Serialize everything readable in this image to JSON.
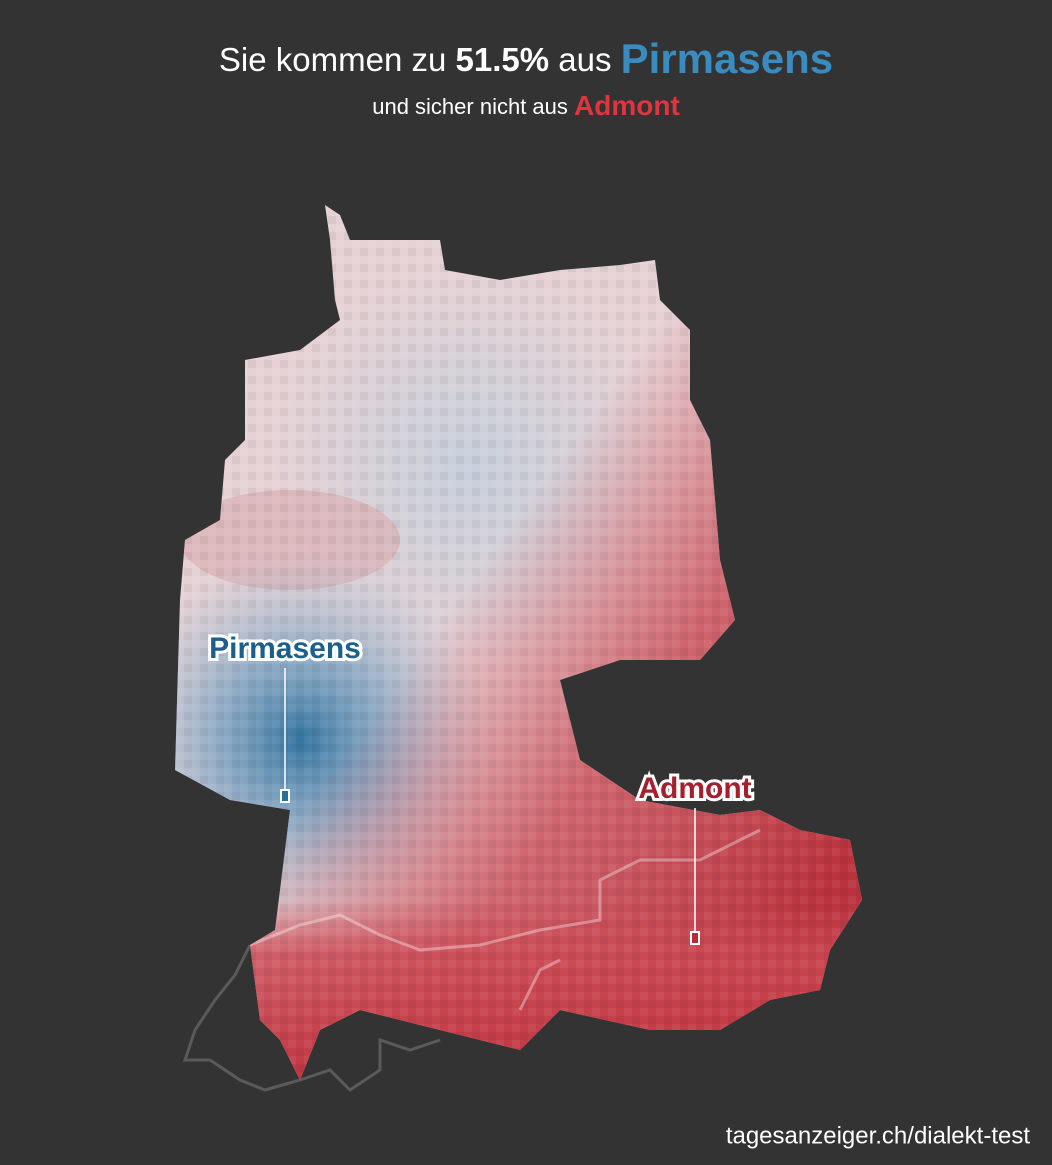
{
  "header": {
    "title_lead": "Sie kommen zu",
    "title_share": "51.5%",
    "title_mid": "aus",
    "title_place": "Pirmasens",
    "subtitle_lead": "und sicher nicht aus",
    "subtitle_place": "Admont"
  },
  "markers": [
    {
      "label": "Pirmasens"
    },
    {
      "label": "Admont"
    }
  ],
  "footer": {
    "source": "tagesanzeiger.ch/dialekt-test"
  }
}
